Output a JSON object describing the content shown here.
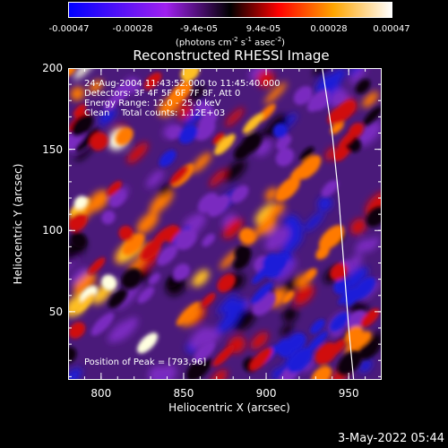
{
  "colorbar": {
    "ticks": [
      "-0.00047",
      "-0.00028",
      "-9.4e-05",
      "9.4e-05",
      "0.00028",
      "0.00047"
    ],
    "unit_pre": "(photons cm",
    "unit_sup1": "-2",
    "unit_mid": " s",
    "unit_sup2": "-1",
    "unit_post": " asec",
    "unit_sup3": "-2",
    "unit_end": ")",
    "colors": [
      "#0000ff",
      "#a020f0",
      "#000000",
      "#ff0000",
      "#ffa500",
      "#ffffff"
    ]
  },
  "title": "Reconstructed RHESSI Image",
  "annotations": {
    "time": "24-Aug-2004 11:43:52.000 to 11:45:40.000",
    "detectors": "Detectors: 3F 4F 5F 6F 7F 8F, Att 0",
    "energy": "Energy Range: 12.0 - 25.0 keV",
    "clean": "Clean    Total counts: 1.12E+03",
    "peak": "Position of Peak = [793,96]"
  },
  "footer": "3-May-2022 05:44",
  "chart_data": {
    "type": "heatmap",
    "title": "Reconstructed RHESSI Image",
    "xlabel": "Heliocentric X (arcsec)",
    "ylabel": "Heliocentric Y (arcsec)",
    "xlim": [
      780,
      970
    ],
    "ylim": [
      8,
      200
    ],
    "xticks": [
      800,
      850,
      900,
      950
    ],
    "yticks": [
      50,
      100,
      150,
      200
    ],
    "zlim": [
      -0.00047,
      0.00047
    ],
    "peak": [
      793,
      96
    ],
    "limb_curve": [
      [
        934,
        200
      ],
      [
        940,
        160
      ],
      [
        944,
        120
      ],
      [
        947,
        80
      ],
      [
        950,
        40
      ],
      [
        953,
        8
      ]
    ]
  }
}
